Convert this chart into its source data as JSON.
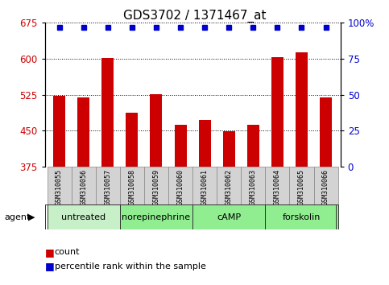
{
  "title": "GDS3702 / 1371467_at",
  "samples": [
    "GSM310055",
    "GSM310056",
    "GSM310057",
    "GSM310058",
    "GSM310059",
    "GSM310060",
    "GSM310061",
    "GSM310062",
    "GSM310063",
    "GSM310064",
    "GSM310065",
    "GSM310066"
  ],
  "counts": [
    522,
    519,
    601,
    488,
    526,
    462,
    472,
    449,
    462,
    604,
    614,
    519
  ],
  "percentile_ranks": [
    97,
    97,
    97,
    97,
    97,
    97,
    97,
    97,
    97,
    97,
    97,
    97
  ],
  "groups": [
    {
      "label": "untreated",
      "start": 0,
      "end": 3
    },
    {
      "label": "norepinephrine",
      "start": 3,
      "end": 6
    },
    {
      "label": "cAMP",
      "start": 6,
      "end": 9
    },
    {
      "label": "forskolin",
      "start": 9,
      "end": 12
    }
  ],
  "group_colors": [
    "#c8f0c8",
    "#90ee90",
    "#90ee90",
    "#90ee90"
  ],
  "ylim_left": [
    375,
    675
  ],
  "yticks_left": [
    375,
    450,
    525,
    600,
    675
  ],
  "yticks_right": [
    0,
    25,
    50,
    75,
    100
  ],
  "ylim_right": [
    0,
    100
  ],
  "bar_color": "#cc0000",
  "dot_color": "#0000cc",
  "bar_bottom": 375,
  "axis_color_left": "#cc0000",
  "axis_color_right": "#0000cc",
  "title_fontsize": 11,
  "sample_label_fontsize": 6,
  "group_label_fontsize": 8,
  "legend_fontsize": 8,
  "right_tick_labels": [
    "0",
    "25",
    "50",
    "75",
    "100%"
  ]
}
